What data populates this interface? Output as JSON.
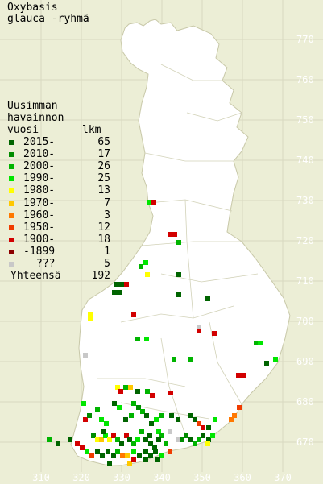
{
  "title": {
    "line1": "Oxybasis",
    "line2": "glauca -ryhmä"
  },
  "legend": {
    "heading": [
      "Uusimman",
      "havainnon",
      "vuosi"
    ],
    "count_header": "lkm",
    "rows": [
      {
        "label": "2015-",
        "count": "65",
        "color": "#006400"
      },
      {
        "label": "2010-",
        "count": "17",
        "color": "#008c00"
      },
      {
        "label": "2000-",
        "count": "26",
        "color": "#00b400"
      },
      {
        "label": "1990-",
        "count": "25",
        "color": "#00e600"
      },
      {
        "label": "1980-",
        "count": "13",
        "color": "#ffff00"
      },
      {
        "label": "1970-",
        "count": "7",
        "color": "#ffc800"
      },
      {
        "label": "1960-",
        "count": "3",
        "color": "#ff7800"
      },
      {
        "label": "1950-",
        "count": "12",
        "color": "#f03c00"
      },
      {
        "label": "1900-",
        "count": "18",
        "color": "#d20000"
      },
      {
        "label": "-1899",
        "count": "1",
        "color": "#8c0000"
      },
      {
        "label": "???",
        "count": "5",
        "color": "#c8c8c8"
      }
    ],
    "total_label": "Yhteensä",
    "total_count": "192"
  },
  "axes": {
    "y_ticks": [
      "770",
      "760",
      "750",
      "740",
      "730",
      "720",
      "710",
      "700",
      "690",
      "680",
      "670"
    ],
    "x_ticks": [
      "310",
      "320",
      "330",
      "340",
      "350",
      "360",
      "370"
    ]
  },
  "colors": {
    "background": "#eceed6",
    "land": "#ffffff",
    "grid": "#d8d8c0",
    "border": "#c8c8a8"
  }
}
